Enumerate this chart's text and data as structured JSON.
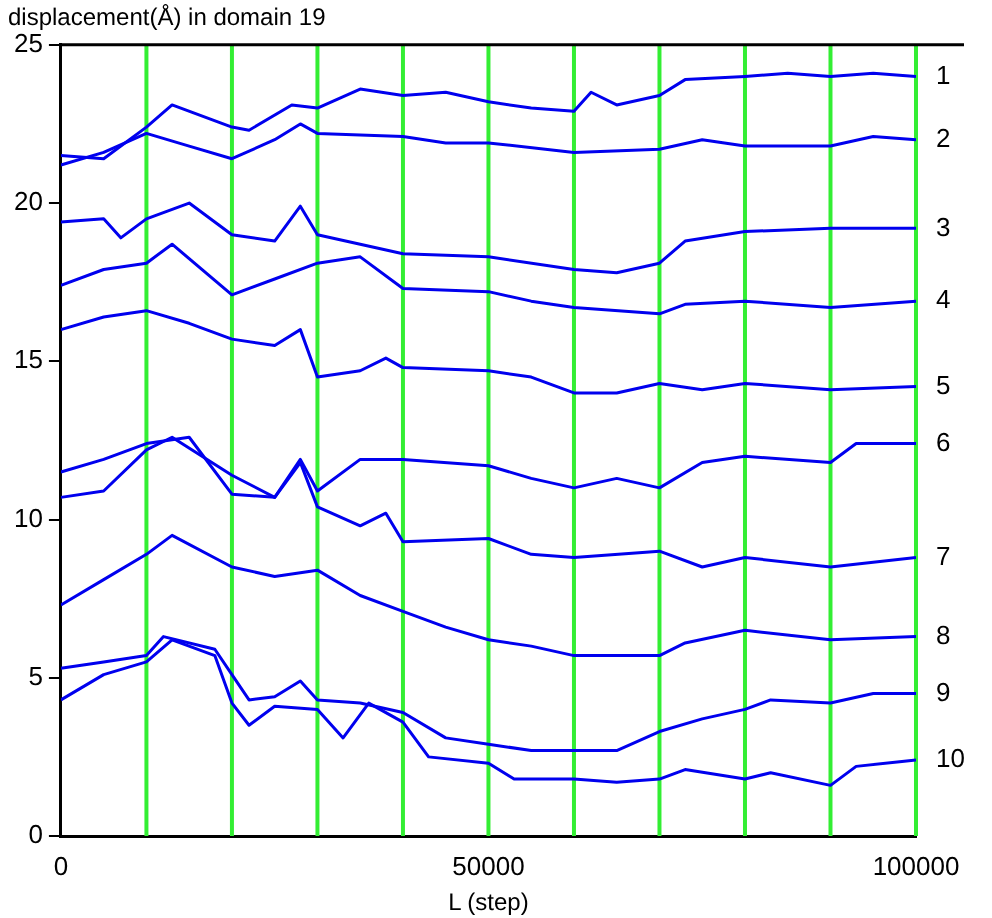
{
  "chart_data": {
    "type": "line",
    "title": "displacement(Å) in domain 19",
    "xlabel": "L (step)",
    "xlim": [
      0,
      100000
    ],
    "xticks": [
      0,
      50000,
      100000
    ],
    "ylim": [
      0,
      25
    ],
    "yticks": [
      0,
      5,
      10,
      15,
      20,
      25
    ],
    "grid": false,
    "legend": false,
    "marker": "none",
    "line_style": "solid",
    "ref_lines": [
      {
        "axis": "x",
        "value": 10000,
        "color": "#33ee33"
      },
      {
        "axis": "x",
        "value": 20000,
        "color": "#33ee33"
      },
      {
        "axis": "x",
        "value": 30000,
        "color": "#33ee33"
      },
      {
        "axis": "x",
        "value": 40000,
        "color": "#33ee33"
      },
      {
        "axis": "x",
        "value": 50000,
        "color": "#33ee33"
      },
      {
        "axis": "x",
        "value": 60000,
        "color": "#33ee33"
      },
      {
        "axis": "x",
        "value": 70000,
        "color": "#33ee33"
      },
      {
        "axis": "x",
        "value": 80000,
        "color": "#33ee33"
      },
      {
        "axis": "x",
        "value": 90000,
        "color": "#33ee33"
      },
      {
        "axis": "x",
        "value": 100000,
        "color": "#33ee33"
      }
    ],
    "series": [
      {
        "name": "1",
        "color": "#0000ee",
        "x": [
          0,
          5000,
          10000,
          13000,
          20000,
          22000,
          27000,
          30000,
          35000,
          40000,
          45000,
          50000,
          55000,
          60000,
          62000,
          65000,
          70000,
          73000,
          80000,
          85000,
          90000,
          95000,
          100000
        ],
        "values": [
          21.5,
          21.4,
          22.4,
          23.1,
          22.4,
          22.3,
          23.1,
          23.0,
          23.6,
          23.4,
          23.5,
          23.2,
          23.0,
          22.9,
          23.5,
          23.1,
          23.4,
          23.9,
          24.0,
          24.1,
          24.0,
          24.1,
          24.0
        ]
      },
      {
        "name": "2",
        "color": "#0000ee",
        "x": [
          0,
          5000,
          10000,
          15000,
          20000,
          25000,
          28000,
          30000,
          40000,
          45000,
          50000,
          60000,
          70000,
          75000,
          80000,
          90000,
          95000,
          100000
        ],
        "values": [
          21.2,
          21.6,
          22.2,
          21.8,
          21.4,
          22.0,
          22.5,
          22.2,
          22.1,
          21.9,
          21.9,
          21.6,
          21.7,
          22.0,
          21.8,
          21.8,
          22.1,
          22.0
        ]
      },
      {
        "name": "3",
        "color": "#0000ee",
        "x": [
          0,
          5000,
          7000,
          10000,
          15000,
          20000,
          25000,
          28000,
          30000,
          40000,
          50000,
          60000,
          65000,
          70000,
          73000,
          80000,
          90000,
          100000
        ],
        "values": [
          19.4,
          19.5,
          18.9,
          19.5,
          20.0,
          19.0,
          18.8,
          19.9,
          19.0,
          18.4,
          18.3,
          17.9,
          17.8,
          18.1,
          18.8,
          19.1,
          19.2,
          19.2
        ]
      },
      {
        "name": "4",
        "color": "#0000ee",
        "x": [
          0,
          5000,
          10000,
          13000,
          20000,
          25000,
          30000,
          35000,
          40000,
          50000,
          55000,
          60000,
          70000,
          73000,
          80000,
          90000,
          100000
        ],
        "values": [
          17.4,
          17.9,
          18.1,
          18.7,
          17.1,
          17.6,
          18.1,
          18.3,
          17.3,
          17.2,
          16.9,
          16.7,
          16.5,
          16.8,
          16.9,
          16.7,
          16.9
        ]
      },
      {
        "name": "5",
        "color": "#0000ee",
        "x": [
          0,
          5000,
          10000,
          15000,
          20000,
          25000,
          28000,
          30000,
          35000,
          38000,
          40000,
          50000,
          55000,
          60000,
          65000,
          70000,
          75000,
          80000,
          90000,
          100000
        ],
        "values": [
          16.0,
          16.4,
          16.6,
          16.2,
          15.7,
          15.5,
          16.0,
          14.5,
          14.7,
          15.1,
          14.8,
          14.7,
          14.5,
          14.0,
          14.0,
          14.3,
          14.1,
          14.3,
          14.1,
          14.2
        ]
      },
      {
        "name": "6",
        "color": "#0000ee",
        "x": [
          0,
          5000,
          10000,
          15000,
          20000,
          25000,
          28000,
          30000,
          35000,
          40000,
          50000,
          55000,
          60000,
          65000,
          70000,
          75000,
          80000,
          90000,
          93000,
          100000
        ],
        "values": [
          11.5,
          11.9,
          12.4,
          12.6,
          10.8,
          10.7,
          11.9,
          10.9,
          11.9,
          11.9,
          11.7,
          11.3,
          11.0,
          11.3,
          11.0,
          11.8,
          12.0,
          11.8,
          12.4,
          12.4
        ]
      },
      {
        "name": "7",
        "color": "#0000ee",
        "x": [
          0,
          5000,
          10000,
          13000,
          20000,
          25000,
          28000,
          30000,
          35000,
          38000,
          40000,
          50000,
          55000,
          60000,
          70000,
          75000,
          80000,
          90000,
          100000
        ],
        "values": [
          10.7,
          10.9,
          12.2,
          12.6,
          11.4,
          10.7,
          11.8,
          10.4,
          9.8,
          10.2,
          9.3,
          9.4,
          8.9,
          8.8,
          9.0,
          8.5,
          8.8,
          8.5,
          8.8
        ]
      },
      {
        "name": "8",
        "color": "#0000ee",
        "x": [
          0,
          5000,
          10000,
          13000,
          20000,
          25000,
          30000,
          35000,
          40000,
          45000,
          50000,
          55000,
          60000,
          65000,
          70000,
          73000,
          80000,
          90000,
          100000
        ],
        "values": [
          7.3,
          8.1,
          8.9,
          9.5,
          8.5,
          8.2,
          8.4,
          7.6,
          7.1,
          6.6,
          6.2,
          6.0,
          5.7,
          5.7,
          5.7,
          6.1,
          6.5,
          6.2,
          6.3
        ]
      },
      {
        "name": "9",
        "color": "#0000ee",
        "x": [
          0,
          5000,
          10000,
          12000,
          18000,
          20000,
          22000,
          25000,
          28000,
          30000,
          35000,
          40000,
          45000,
          50000,
          55000,
          60000,
          65000,
          70000,
          75000,
          80000,
          83000,
          90000,
          95000,
          100000
        ],
        "values": [
          5.3,
          5.5,
          5.7,
          6.3,
          5.9,
          5.1,
          4.3,
          4.4,
          4.9,
          4.3,
          4.2,
          3.9,
          3.1,
          2.9,
          2.7,
          2.7,
          2.7,
          3.3,
          3.7,
          4.0,
          4.3,
          4.2,
          4.5,
          4.5
        ]
      },
      {
        "name": "10",
        "color": "#0000ee",
        "x": [
          0,
          5000,
          10000,
          13000,
          18000,
          20000,
          22000,
          25000,
          30000,
          33000,
          36000,
          40000,
          43000,
          50000,
          53000,
          60000,
          65000,
          70000,
          73000,
          80000,
          83000,
          90000,
          93000,
          100000
        ],
        "values": [
          4.3,
          5.1,
          5.5,
          6.2,
          5.7,
          4.2,
          3.5,
          4.1,
          4.0,
          3.1,
          4.2,
          3.6,
          2.5,
          2.3,
          1.8,
          1.8,
          1.7,
          1.8,
          2.1,
          1.8,
          2.0,
          1.6,
          2.2,
          2.4
        ]
      }
    ]
  }
}
